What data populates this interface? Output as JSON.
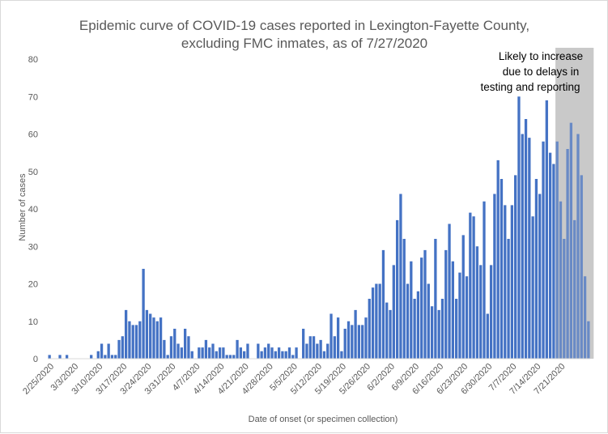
{
  "chart_data": {
    "type": "bar",
    "title_lines": [
      "Epidemic curve of COVID-19 cases reported in Lexington-Fayette County,",
      "excluding FMC inmates, as of 7/27/2020"
    ],
    "xlabel": "Date of onset (or specimen collection)",
    "ylabel": "Number of cases",
    "ylim": [
      0,
      80
    ],
    "y_ticks": [
      0,
      10,
      20,
      30,
      40,
      50,
      60,
      70,
      80
    ],
    "grid": false,
    "start_date": "2020-02-25",
    "x_tick_labels": [
      "2/25/2020",
      "3/3/2020",
      "3/10/2020",
      "3/17/2020",
      "3/24/2020",
      "3/31/2020",
      "4/7/2020",
      "4/14/2020",
      "4/21/2020",
      "4/28/2020",
      "5/5/2020",
      "5/12/2020",
      "5/19/2020",
      "5/26/2020",
      "6/2/2020",
      "6/9/2020",
      "6/16/2020",
      "6/23/2020",
      "6/30/2020",
      "7/7/2020",
      "7/14/2020",
      "7/21/2020"
    ],
    "values": [
      1,
      0,
      0,
      1,
      0,
      1,
      0,
      0,
      0,
      0,
      0,
      0,
      1,
      0,
      2,
      4,
      1,
      4,
      1,
      1,
      5,
      6,
      13,
      10,
      9,
      9,
      10,
      24,
      13,
      12,
      11,
      10,
      11,
      5,
      1,
      6,
      8,
      4,
      3,
      8,
      6,
      2,
      0,
      3,
      3,
      5,
      3,
      4,
      2,
      3,
      3,
      1,
      1,
      1,
      5,
      3,
      2,
      4,
      0,
      0,
      4,
      2,
      3,
      4,
      3,
      2,
      3,
      2,
      2,
      3,
      1,
      3,
      0,
      8,
      4,
      6,
      6,
      4,
      5,
      2,
      4,
      12,
      6,
      11,
      2,
      8,
      10,
      9,
      13,
      9,
      9,
      11,
      16,
      19,
      20,
      20,
      29,
      15,
      13,
      25,
      37,
      44,
      32,
      20,
      26,
      16,
      18,
      27,
      29,
      20,
      14,
      32,
      13,
      16,
      29,
      36,
      26,
      16,
      23,
      33,
      22,
      39,
      38,
      30,
      25,
      42,
      12,
      25,
      44,
      53,
      48,
      41,
      32,
      41,
      49,
      70,
      60,
      64,
      59,
      38,
      48,
      44,
      58,
      69,
      55,
      52,
      58,
      42,
      32,
      56,
      63,
      37,
      60,
      49,
      22,
      10
    ],
    "bar_color": "#4472c4",
    "delay_band": {
      "start_index": 146,
      "end_index": 156,
      "color": "#c9c9c9",
      "label_lines": [
        "Likely to increase",
        "due to delays in",
        "testing and reporting"
      ]
    }
  }
}
